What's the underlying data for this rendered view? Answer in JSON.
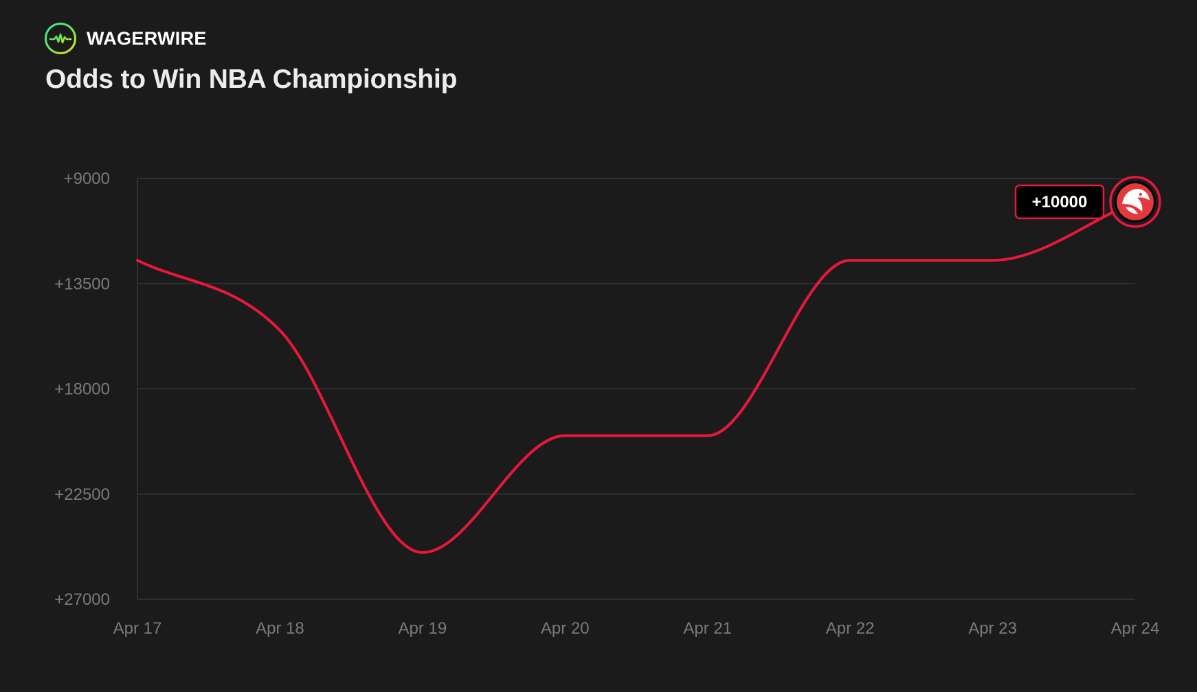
{
  "brand": {
    "name": "WAGERWIRE",
    "logo_icon": "pulse-circle-icon"
  },
  "colors": {
    "background": "#1b1b1b",
    "line": "#e8183c",
    "grid": "#3e3e3e",
    "tick_text": "#7a7a7a",
    "title_text": "#ececec"
  },
  "chart_data": {
    "type": "line",
    "title": "Odds to Win NBA Championship",
    "xlabel": "",
    "ylabel": "",
    "x": [
      "Apr 17",
      "Apr 18",
      "Apr 19",
      "Apr 20",
      "Apr 21",
      "Apr 22",
      "Apr 23",
      "Apr 24"
    ],
    "y_ticks": [
      9000,
      13500,
      18000,
      22500,
      27000
    ],
    "y_tick_labels": [
      "+9000",
      "+13500",
      "+18000",
      "+22500",
      "+27000"
    ],
    "ylim": [
      27000,
      9000
    ],
    "grid": true,
    "series": [
      {
        "name": "",
        "color": "#e8183c",
        "icon": "atlanta-hawks-logo-icon",
        "values": [
          12500,
          15500,
          25000,
          20000,
          20000,
          12500,
          12500,
          10000
        ]
      }
    ],
    "annotation": {
      "text": "+10000",
      "x": "Apr 24",
      "y": 10000
    }
  }
}
